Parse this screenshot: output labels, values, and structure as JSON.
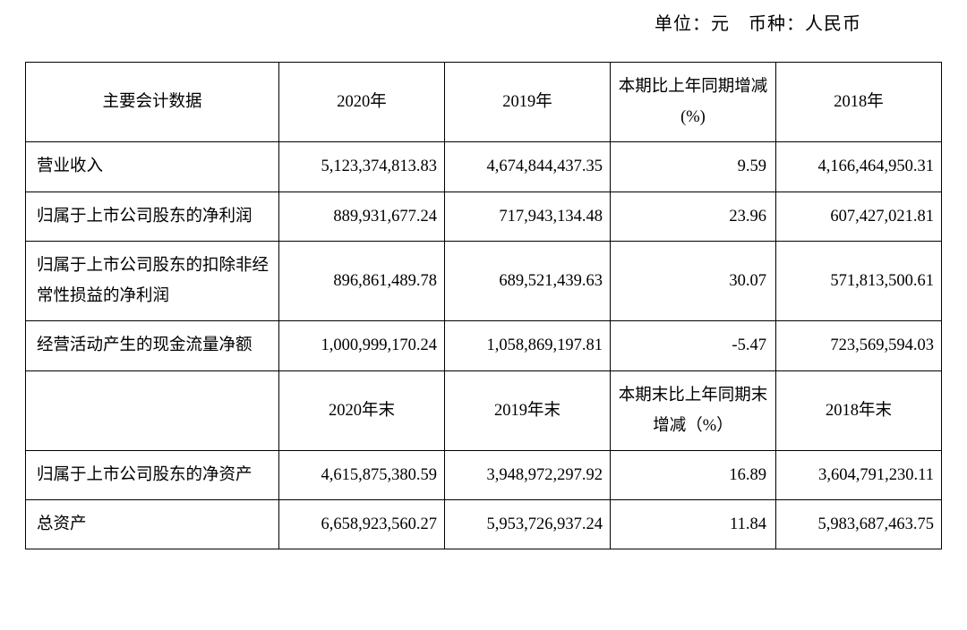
{
  "meta": {
    "unit_label": "单位：元",
    "currency_label": "币种：人民币",
    "spacer": "　"
  },
  "table": {
    "headers1": {
      "metric": "主要会计数据",
      "y2020": "2020年",
      "y2019": "2019年",
      "change": "本期比上年同期增减(%)",
      "y2018": "2018年"
    },
    "rows1": [
      {
        "label": "营业收入",
        "v2020": "5,123,374,813.83",
        "v2019": "4,674,844,437.35",
        "change": "9.59",
        "v2018": "4,166,464,950.31"
      },
      {
        "label": "归属于上市公司股东的净利润",
        "v2020": "889,931,677.24",
        "v2019": "717,943,134.48",
        "change": "23.96",
        "v2018": "607,427,021.81"
      },
      {
        "label": "归属于上市公司股东的扣除非经常性损益的净利润",
        "v2020": "896,861,489.78",
        "v2019": "689,521,439.63",
        "change": "30.07",
        "v2018": "571,813,500.61"
      },
      {
        "label": "经营活动产生的现金流量净额",
        "v2020": "1,000,999,170.24",
        "v2019": "1,058,869,197.81",
        "change": "-5.47",
        "v2018": "723,569,594.03"
      }
    ],
    "headers2": {
      "metric": "",
      "y2020": "2020年末",
      "y2019": "2019年末",
      "change": "本期末比上年同期末增减（%）",
      "y2018": "2018年末"
    },
    "rows2": [
      {
        "label": "归属于上市公司股东的净资产",
        "v2020": "4,615,875,380.59",
        "v2019": "3,948,972,297.92",
        "change": "16.89",
        "v2018": "3,604,791,230.11"
      },
      {
        "label": "总资产",
        "v2020": "6,658,923,560.27",
        "v2019": "5,953,726,937.24",
        "change": "11.84",
        "v2018": "5,983,687,463.75"
      }
    ]
  },
  "styling": {
    "font_family": "SimSun, 宋体, serif",
    "font_size_body": 18.5,
    "font_size_header": 20,
    "line_height": 1.85,
    "border_color": "#000000",
    "border_width": 1.5,
    "background_color": "#ffffff",
    "text_color": "#000000",
    "column_widths_percent": [
      26,
      17,
      17,
      17,
      17
    ],
    "cell_padding": "10px 8px",
    "number_align": "right",
    "label_align": "left",
    "header_align": "center"
  }
}
